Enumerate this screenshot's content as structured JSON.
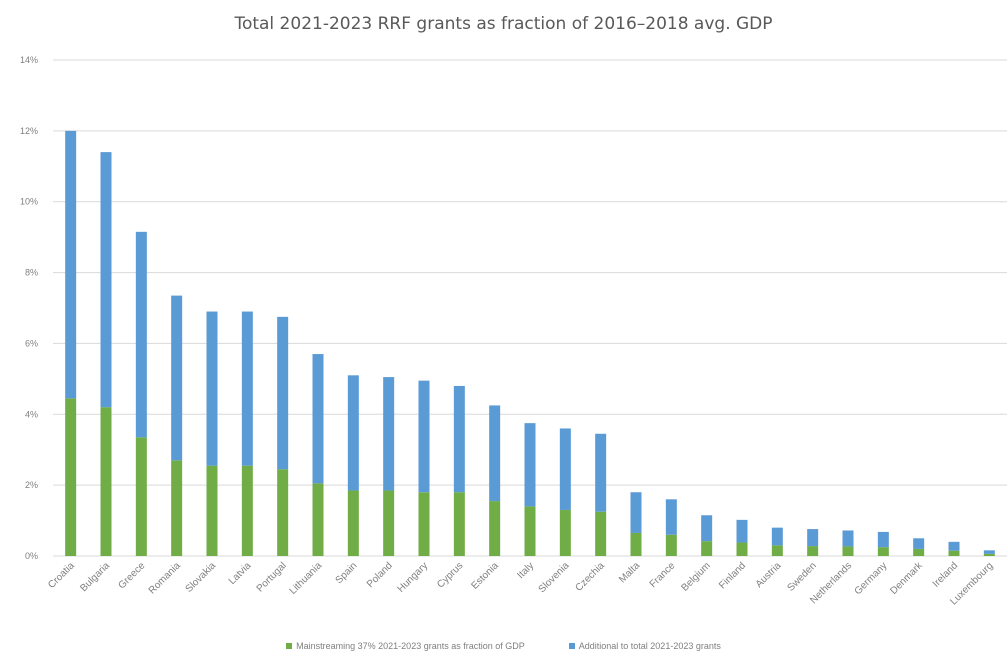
{
  "chart_data": {
    "type": "bar",
    "stacked": true,
    "title": "Total  2021-2023 RRF grants as fraction of 2016–2018 avg. GDP",
    "xlabel": "",
    "ylabel": "",
    "ylim": [
      0,
      14
    ],
    "y_ticks": [
      "0%",
      "2%",
      "4%",
      "6%",
      "8%",
      "10%",
      "12%",
      "14%"
    ],
    "grid": true,
    "legend_position": "bottom",
    "categories": [
      "Croatia",
      "Bulgaria",
      "Greece",
      "Romania",
      "Slovakia",
      "Latvia",
      "Portugal",
      "Lithuania",
      "Spain",
      "Poland",
      "Hungary",
      "Cyprus",
      "Estonia",
      "Italy",
      "Slovenia",
      "Czechia",
      "Malta",
      "France",
      "Belgium",
      "Finland",
      "Austria",
      "Sweden",
      "Netherlands",
      "Germany",
      "Denmark",
      "Ireland",
      "Luxembourg"
    ],
    "series": [
      {
        "name": "Mainstreaming 37% 2021-2023 grants as fraction of GDP",
        "color": "#70ad47",
        "values": [
          4.45,
          4.2,
          3.35,
          2.7,
          2.55,
          2.55,
          2.45,
          2.05,
          1.85,
          1.85,
          1.8,
          1.8,
          1.55,
          1.4,
          1.3,
          1.25,
          0.65,
          0.6,
          0.42,
          0.38,
          0.3,
          0.28,
          0.27,
          0.25,
          0.2,
          0.15,
          0.06
        ]
      },
      {
        "name": "Additional to total 2021-2023 grants",
        "color": "#5b9bd5",
        "values": [
          7.55,
          7.2,
          5.8,
          4.65,
          4.35,
          4.35,
          4.3,
          3.65,
          3.25,
          3.2,
          3.15,
          3.0,
          2.7,
          2.35,
          2.3,
          2.2,
          1.15,
          1.0,
          0.73,
          0.64,
          0.5,
          0.48,
          0.45,
          0.43,
          0.3,
          0.25,
          0.1
        ]
      }
    ]
  }
}
